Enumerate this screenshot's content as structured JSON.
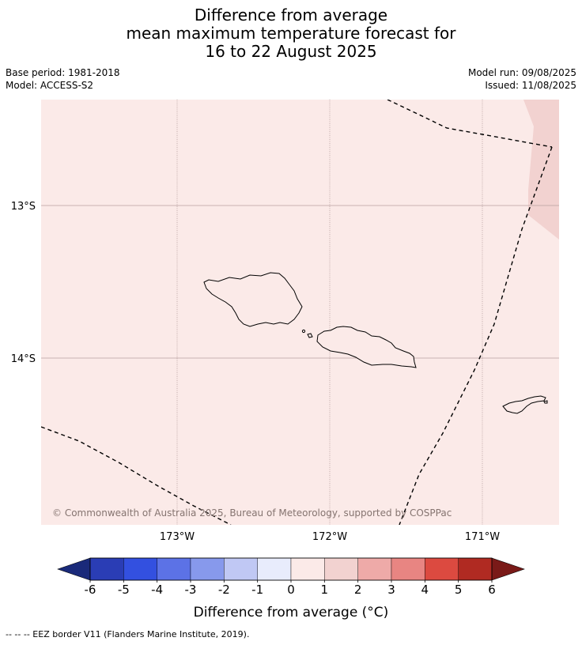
{
  "title": {
    "line1": "Difference from average",
    "line2": "mean maximum temperature forecast for",
    "line3": "16 to 22 August 2025"
  },
  "meta": {
    "base_period": "Base period: 1981-2018",
    "model": "Model: ACCESS-S2",
    "model_run": "Model run: 09/08/2025",
    "issued": "Issued: 11/08/2025"
  },
  "map": {
    "lat_labels": [
      "13°S",
      "14°S"
    ],
    "lon_labels": [
      "173°W",
      "172°W",
      "171°W"
    ],
    "copyright": "© Commonwealth of Australia 2025, Bureau of Meteorology, supported by COSPPac",
    "base_fill_color": "#fbeae8",
    "warm_patch_color": "#f2d2d0",
    "dominant_anomaly_category": "0 to 1"
  },
  "colorbar": {
    "ticks": [
      "-6",
      "-5",
      "-4",
      "-3",
      "-2",
      "-1",
      "0",
      "1",
      "2",
      "3",
      "4",
      "5",
      "6"
    ],
    "colors": [
      "#1a2a7a",
      "#2a3db5",
      "#3350e0",
      "#5c72e6",
      "#8799ec",
      "#c0c8f4",
      "#e8ecfc",
      "#fbeae8",
      "#f2d2d0",
      "#eeaaa8",
      "#e88582",
      "#dc4a40",
      "#b02a22",
      "#7a1a18"
    ],
    "label": "Difference from average (°C)"
  },
  "footnote": "--  --  -- EEZ border V11 (Flanders Marine Institute, 2019)."
}
